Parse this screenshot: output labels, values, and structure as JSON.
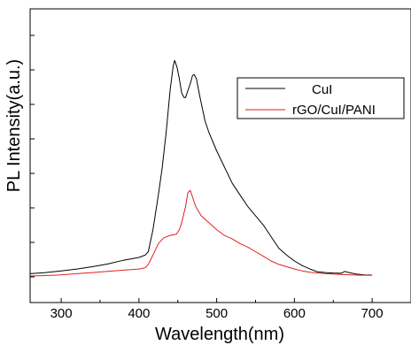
{
  "chart_data": {
    "type": "line",
    "xlabel": "Wavelength(nm)",
    "ylabel": "PL Intensity(a.u.)",
    "xlim": [
      260,
      750
    ],
    "ylim": [
      0,
      1
    ],
    "x_ticks": [
      300,
      400,
      500,
      600,
      700
    ],
    "y_tick_labels_shown": false,
    "grid": false,
    "legend_position": "top-right",
    "series": [
      {
        "name": "CuI",
        "color": "#000000",
        "points": [
          [
            260,
            0.01
          ],
          [
            280,
            0.015
          ],
          [
            300,
            0.022
          ],
          [
            320,
            0.03
          ],
          [
            340,
            0.04
          ],
          [
            360,
            0.052
          ],
          [
            380,
            0.068
          ],
          [
            400,
            0.08
          ],
          [
            408,
            0.09
          ],
          [
            412,
            0.105
          ],
          [
            418,
            0.2
          ],
          [
            425,
            0.35
          ],
          [
            430,
            0.47
          ],
          [
            435,
            0.62
          ],
          [
            440,
            0.8
          ],
          [
            444,
            0.905
          ],
          [
            446,
            0.93
          ],
          [
            449,
            0.9
          ],
          [
            452,
            0.85
          ],
          [
            455,
            0.79
          ],
          [
            458,
            0.77
          ],
          [
            460,
            0.77
          ],
          [
            463,
            0.8
          ],
          [
            466,
            0.83
          ],
          [
            469,
            0.865
          ],
          [
            471,
            0.87
          ],
          [
            474,
            0.85
          ],
          [
            478,
            0.78
          ],
          [
            485,
            0.67
          ],
          [
            490,
            0.62
          ],
          [
            495,
            0.58
          ],
          [
            500,
            0.54
          ],
          [
            510,
            0.47
          ],
          [
            520,
            0.4
          ],
          [
            530,
            0.35
          ],
          [
            540,
            0.3
          ],
          [
            550,
            0.26
          ],
          [
            560,
            0.22
          ],
          [
            570,
            0.17
          ],
          [
            580,
            0.12
          ],
          [
            590,
            0.09
          ],
          [
            600,
            0.065
          ],
          [
            610,
            0.045
          ],
          [
            620,
            0.03
          ],
          [
            630,
            0.018
          ],
          [
            640,
            0.015
          ],
          [
            650,
            0.013
          ],
          [
            660,
            0.012
          ],
          [
            665,
            0.02
          ],
          [
            670,
            0.015
          ],
          [
            680,
            0.008
          ],
          [
            690,
            0.005
          ],
          [
            700,
            0.004
          ]
        ]
      },
      {
        "name": "rGO/CuI/PANI",
        "color": "#e0201b",
        "points": [
          [
            260,
            0.0
          ],
          [
            280,
            0.002
          ],
          [
            300,
            0.005
          ],
          [
            320,
            0.01
          ],
          [
            340,
            0.015
          ],
          [
            360,
            0.02
          ],
          [
            380,
            0.025
          ],
          [
            400,
            0.03
          ],
          [
            408,
            0.035
          ],
          [
            412,
            0.05
          ],
          [
            418,
            0.09
          ],
          [
            425,
            0.14
          ],
          [
            432,
            0.165
          ],
          [
            440,
            0.175
          ],
          [
            448,
            0.18
          ],
          [
            452,
            0.2
          ],
          [
            455,
            0.23
          ],
          [
            460,
            0.3
          ],
          [
            463,
            0.36
          ],
          [
            466,
            0.37
          ],
          [
            469,
            0.34
          ],
          [
            473,
            0.3
          ],
          [
            480,
            0.26
          ],
          [
            490,
            0.23
          ],
          [
            500,
            0.2
          ],
          [
            510,
            0.175
          ],
          [
            520,
            0.16
          ],
          [
            530,
            0.14
          ],
          [
            540,
            0.125
          ],
          [
            550,
            0.105
          ],
          [
            560,
            0.085
          ],
          [
            570,
            0.065
          ],
          [
            580,
            0.05
          ],
          [
            590,
            0.04
          ],
          [
            600,
            0.03
          ],
          [
            610,
            0.022
          ],
          [
            620,
            0.016
          ],
          [
            640,
            0.01
          ],
          [
            660,
            0.007
          ],
          [
            680,
            0.004
          ],
          [
            700,
            0.003
          ]
        ]
      }
    ]
  }
}
